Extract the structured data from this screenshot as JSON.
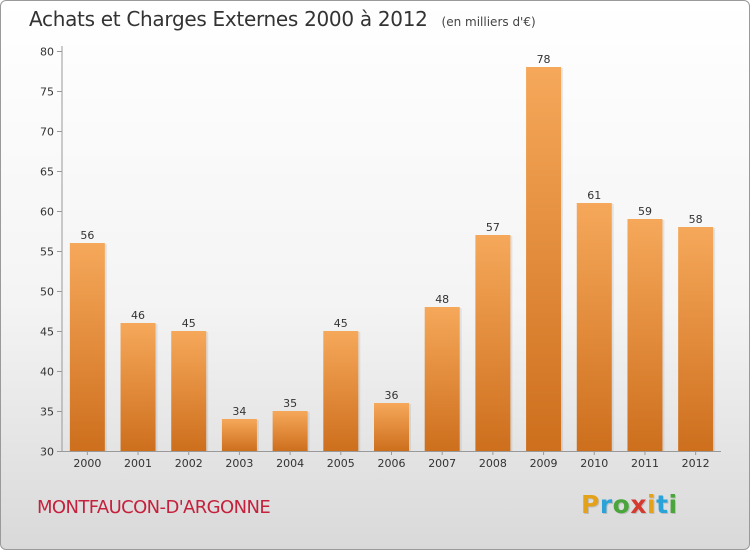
{
  "header": {
    "title": "Achats et Charges Externes 2000 à 2012",
    "unit": "(en milliers d'€)"
  },
  "footer": {
    "commune": "MONTFAUCON-D'ARGONNE",
    "logo_letters": [
      {
        "ch": "P",
        "color": "#e4a21a"
      },
      {
        "ch": "r",
        "color": "#2aa3d8"
      },
      {
        "ch": "o",
        "color": "#4aa63b"
      },
      {
        "ch": "x",
        "color": "#d63a2f"
      },
      {
        "ch": "i",
        "color": "#e4a21a"
      },
      {
        "ch": "t",
        "color": "#2aa3d8"
      },
      {
        "ch": "i",
        "color": "#4aa63b"
      }
    ]
  },
  "colors": {
    "bar_top": "#f6a85a",
    "bar_bottom": "#cd6f1d",
    "commune": "#c5213d"
  },
  "chart_data": {
    "type": "bar",
    "title": "Achats et Charges Externes 2000 à 2012",
    "categories": [
      "2000",
      "2001",
      "2002",
      "2003",
      "2004",
      "2005",
      "2006",
      "2007",
      "2008",
      "2009",
      "2010",
      "2011",
      "2012"
    ],
    "values": [
      56,
      46,
      45,
      34,
      35,
      45,
      36,
      48,
      57,
      78,
      61,
      59,
      58
    ],
    "ylim": [
      30,
      80
    ],
    "yticks": [
      30,
      35,
      40,
      45,
      50,
      55,
      60,
      65,
      70,
      75,
      80
    ],
    "grid": false,
    "data_labels": true
  }
}
